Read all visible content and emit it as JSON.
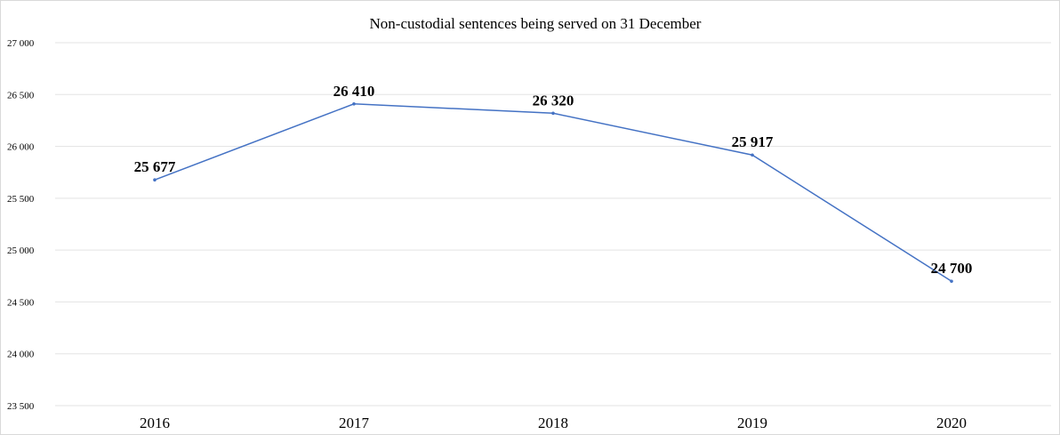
{
  "chart_data": {
    "type": "line",
    "title": "Non-custodial sentences being served on 31 December",
    "xlabel": "",
    "ylabel": "",
    "categories": [
      "2016",
      "2017",
      "2018",
      "2019",
      "2020"
    ],
    "series": [
      {
        "values": [
          25677,
          26410,
          26320,
          25917,
          24700
        ],
        "data_labels": [
          "25 677",
          "26 410",
          "26 320",
          "25 917",
          "24 700"
        ],
        "color": "#4472c4"
      }
    ],
    "ylim": [
      23500,
      27000
    ],
    "yticks": [
      23500,
      24000,
      24500,
      25000,
      25500,
      26000,
      26500,
      27000
    ],
    "ytick_labels": [
      "23 500",
      "24 000",
      "24 500",
      "25 000",
      "25 500",
      "26 000",
      "26 500",
      "27 000"
    ],
    "grid": true,
    "legend": "none"
  }
}
